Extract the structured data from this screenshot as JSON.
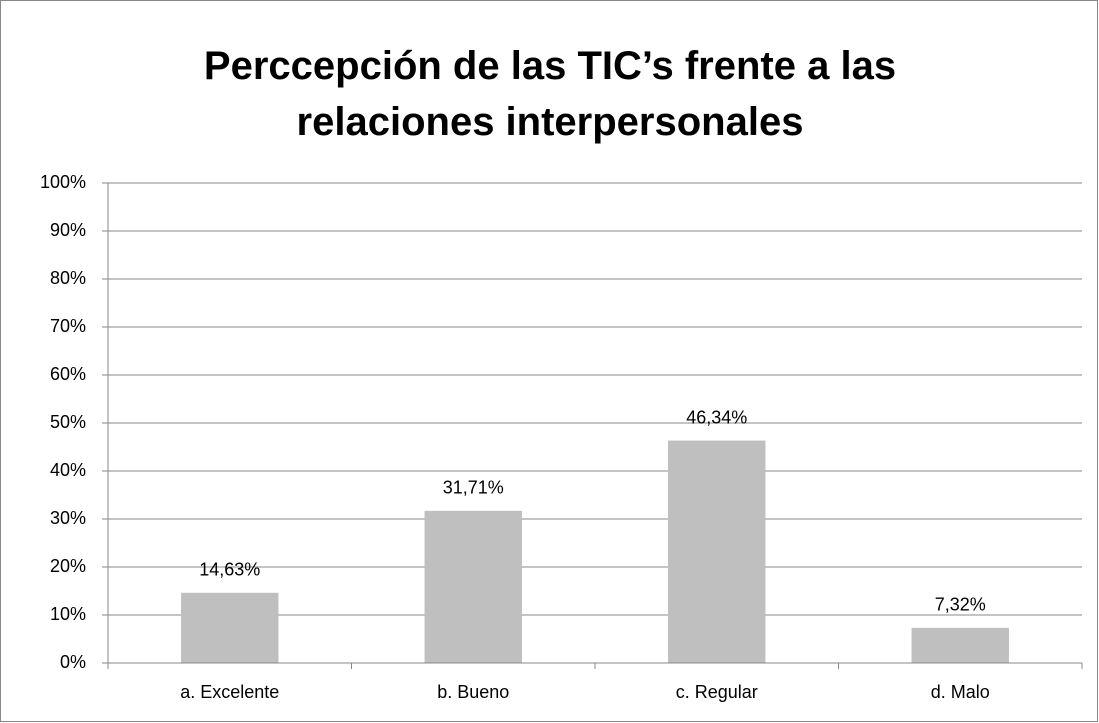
{
  "chart_data": {
    "type": "bar",
    "title": "Perccepción de las TIC’s frente a las relaciones interpersonales",
    "categories": [
      "a. Excelente",
      "b. Bueno",
      "c. Regular",
      "d. Malo"
    ],
    "values": [
      14.63,
      31.71,
      46.34,
      7.32
    ],
    "value_labels": [
      "14,63%",
      "31,71%",
      "46,34%",
      "7,32%"
    ],
    "color": "#bfbfbf",
    "ylim": [
      0,
      100
    ],
    "yticks": [
      {
        "value": 0,
        "label": "0%"
      },
      {
        "value": 10,
        "label": "10%"
      },
      {
        "value": 20,
        "label": "20%"
      },
      {
        "value": 30,
        "label": "30%"
      },
      {
        "value": 40,
        "label": "40%"
      },
      {
        "value": 50,
        "label": "50%"
      },
      {
        "value": 60,
        "label": "60%"
      },
      {
        "value": 70,
        "label": "70%"
      },
      {
        "value": 80,
        "label": "80%"
      },
      {
        "value": 90,
        "label": "90%"
      },
      {
        "value": 100,
        "label": "100%"
      }
    ],
    "grid": true
  }
}
